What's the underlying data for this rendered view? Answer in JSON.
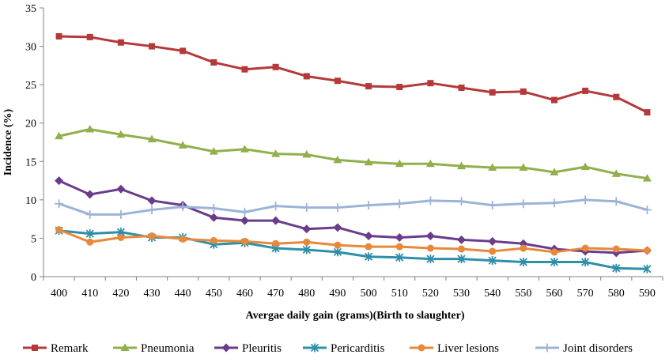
{
  "chart_data": {
    "type": "line",
    "xlabel": "Avergae daily gain (grams)(Birth to slaughter)",
    "ylabel": "Incidence (%)",
    "ylim": [
      0,
      35
    ],
    "yticks": [
      0,
      5,
      10,
      15,
      20,
      25,
      30,
      35
    ],
    "x": [
      400,
      410,
      420,
      430,
      440,
      450,
      460,
      470,
      480,
      490,
      500,
      510,
      520,
      530,
      540,
      550,
      560,
      570,
      580,
      590
    ],
    "grid": false,
    "legend_position": "bottom",
    "series": [
      {
        "name": "Remark",
        "color": "#b5393a",
        "marker": "square",
        "values": [
          31.3,
          31.2,
          30.5,
          30.0,
          29.4,
          27.9,
          27.0,
          27.3,
          26.1,
          25.5,
          24.8,
          24.7,
          25.2,
          24.6,
          24.0,
          24.1,
          23.0,
          24.2,
          23.4,
          21.4
        ]
      },
      {
        "name": "Pneumonia",
        "color": "#8fb04b",
        "marker": "triangle",
        "values": [
          18.3,
          19.2,
          18.5,
          17.9,
          17.1,
          16.3,
          16.6,
          16.0,
          15.9,
          15.2,
          14.9,
          14.7,
          14.7,
          14.4,
          14.2,
          14.2,
          13.6,
          14.3,
          13.4,
          12.8
        ]
      },
      {
        "name": "Pleuritis",
        "color": "#6a3c8c",
        "marker": "diamond",
        "values": [
          12.5,
          10.7,
          11.4,
          9.9,
          9.3,
          7.7,
          7.3,
          7.3,
          6.2,
          6.4,
          5.3,
          5.1,
          5.3,
          4.8,
          4.6,
          4.3,
          3.6,
          3.3,
          3.1,
          3.4
        ]
      },
      {
        "name": "Pericarditis",
        "color": "#2e8fa8",
        "marker": "star",
        "values": [
          6.0,
          5.6,
          5.8,
          5.1,
          5.1,
          4.2,
          4.4,
          3.7,
          3.5,
          3.2,
          2.6,
          2.5,
          2.3,
          2.3,
          2.1,
          1.9,
          1.9,
          1.9,
          1.1,
          1.0
        ]
      },
      {
        "name": "Liver lesions",
        "color": "#e8883a",
        "marker": "circle",
        "values": [
          6.1,
          4.5,
          5.1,
          5.3,
          4.9,
          4.7,
          4.6,
          4.3,
          4.5,
          4.1,
          3.9,
          3.9,
          3.7,
          3.6,
          3.3,
          3.7,
          3.2,
          3.7,
          3.6,
          3.4
        ]
      },
      {
        "name": "Joint disorders",
        "color": "#9cb3d8",
        "marker": "cross",
        "values": [
          9.5,
          8.1,
          8.1,
          8.7,
          9.1,
          8.9,
          8.4,
          9.2,
          9.0,
          9.0,
          9.3,
          9.5,
          9.9,
          9.8,
          9.3,
          9.5,
          9.6,
          10.0,
          9.8,
          8.7
        ]
      }
    ]
  }
}
